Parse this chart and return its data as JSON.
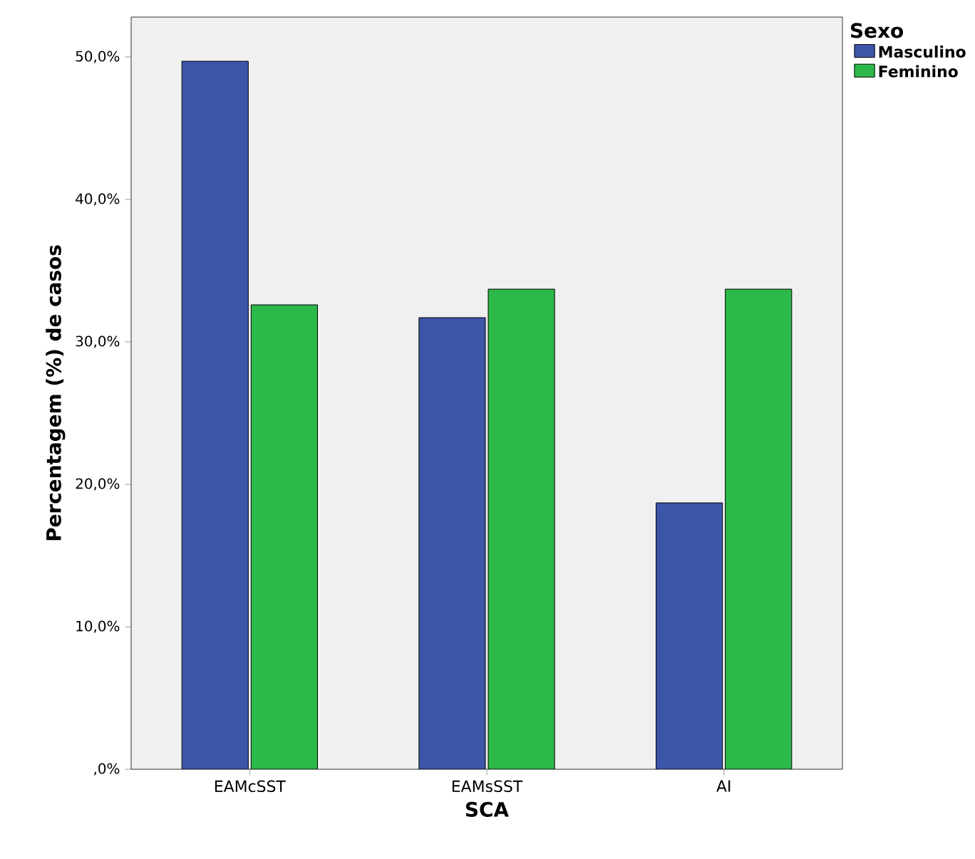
{
  "chart_data": {
    "type": "bar",
    "xlabel": "SCA",
    "ylabel": "Percentagem (%) de casos",
    "legend_title": "Sexo",
    "legend": "top right",
    "categories": [
      "EAMcSST",
      "EAMsSST",
      "AI"
    ],
    "series": [
      {
        "name": "Masculino",
        "color": "#3d55a8",
        "values": [
          49.7,
          31.7,
          18.7
        ]
      },
      {
        "name": "Feminino",
        "color": "#2db84a",
        "values": [
          32.6,
          33.7,
          33.7
        ]
      }
    ],
    "ylim": [
      0,
      52.8
    ],
    "yticks": [
      {
        "value": 0,
        "label": ",0%"
      },
      {
        "value": 10,
        "label": "10,0%"
      },
      {
        "value": 20,
        "label": "20,0%"
      },
      {
        "value": 30,
        "label": "30,0%"
      },
      {
        "value": 40,
        "label": "40,0%"
      },
      {
        "value": 50,
        "label": "50,0%"
      }
    ]
  }
}
